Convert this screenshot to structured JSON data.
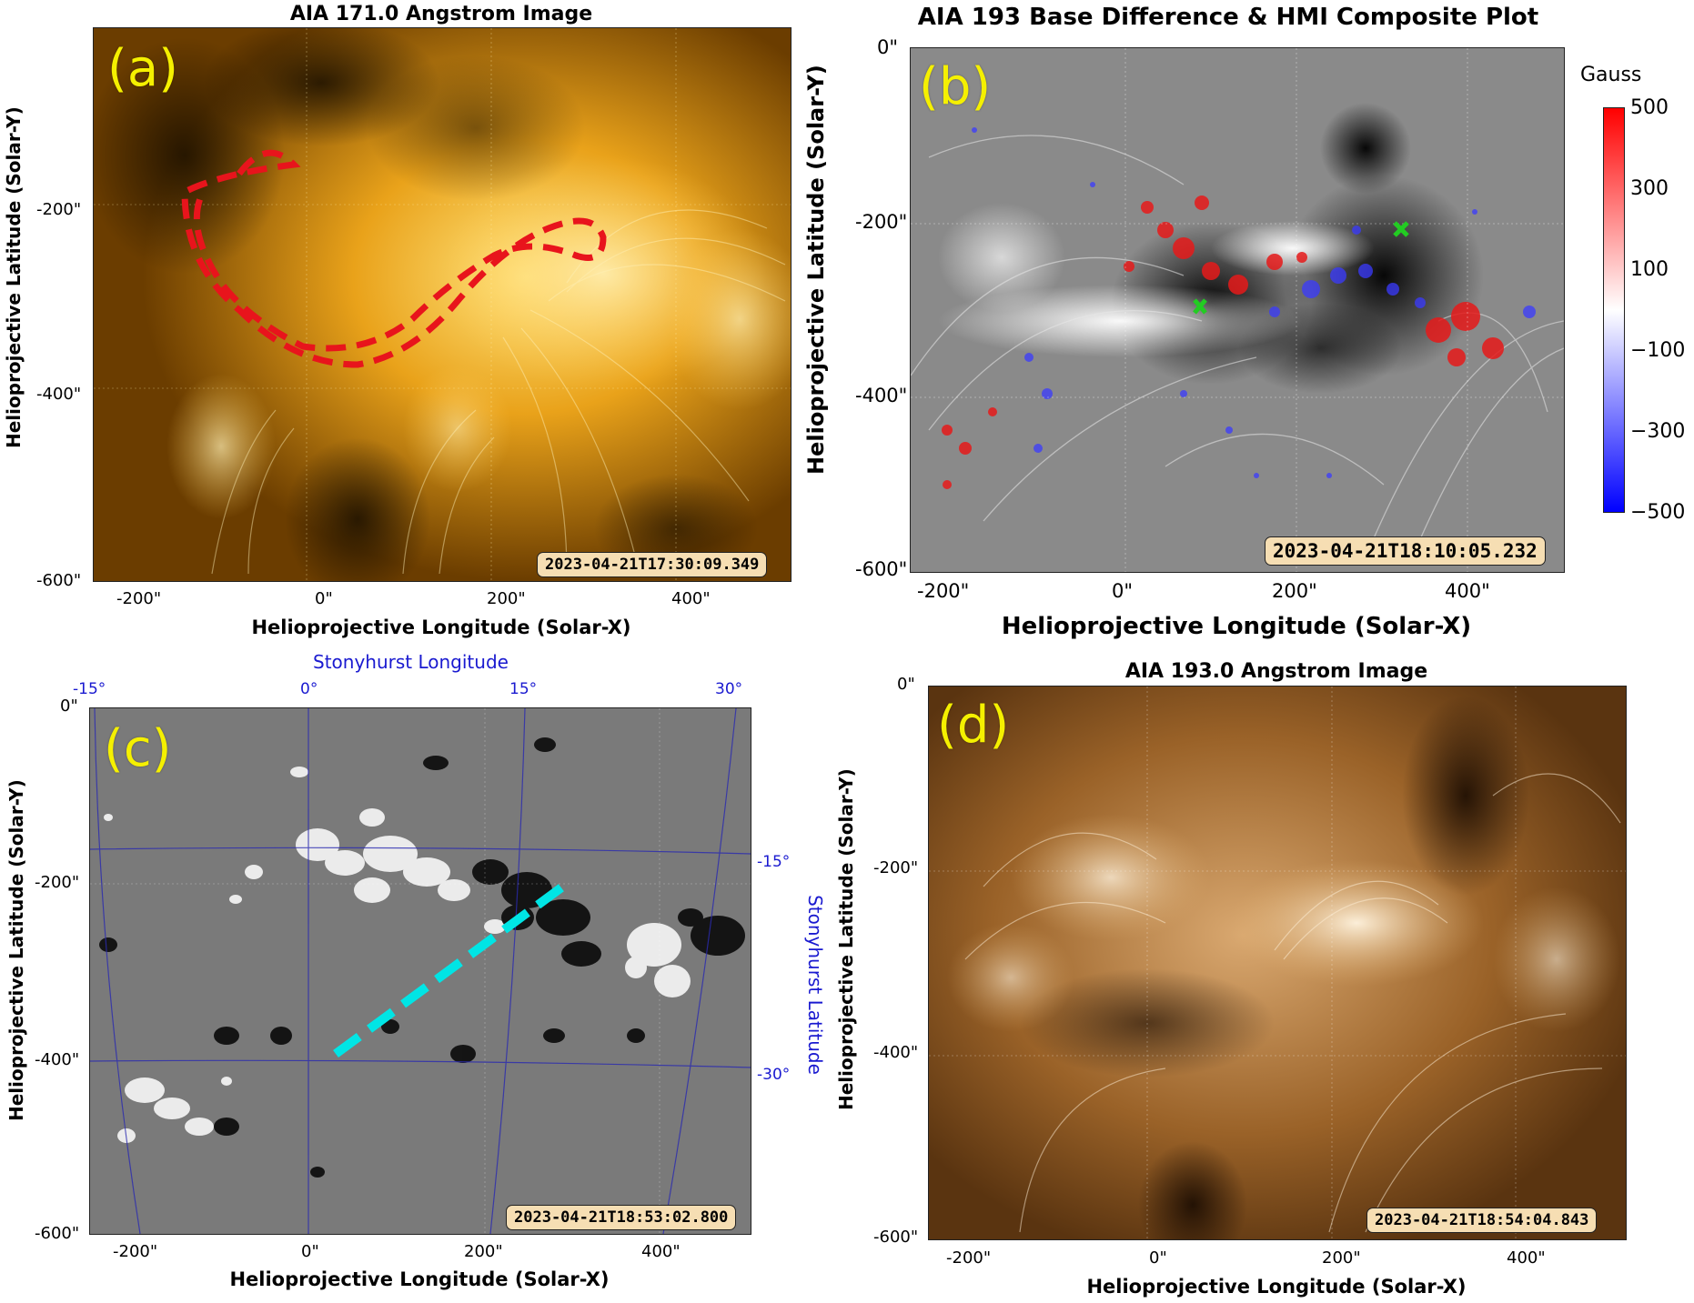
{
  "panels": {
    "a": {
      "title": "AIA 171.0 Angstrom Image",
      "label": "(a)",
      "timestamp": "2023-04-21T17:30:09.349",
      "xlabel": "Helioprojective Longitude (Solar-X)",
      "ylabel": "Helioprojective Latitude (Solar-Y)",
      "xticks": [
        "-200\"",
        "0\"",
        "200\"",
        "400\""
      ],
      "yticks": [
        "-200\"",
        "-400\"",
        "-600\""
      ],
      "overlay_color": "#e8141c"
    },
    "b": {
      "title": "AIA 193 Base Difference & HMI Composite Plot",
      "label": "(b)",
      "timestamp": "2023-04-21T18:10:05.232",
      "xlabel": "Helioprojective Longitude (Solar-X)",
      "ylabel": "Helioprojective Latitude (Solar-Y)",
      "xticks": [
        "-200\"",
        "0\"",
        "200\"",
        "400\""
      ],
      "yticks": [
        "0\"",
        "-200\"",
        "-400\"",
        "-600\""
      ],
      "colorbar": {
        "title": "Gauss",
        "ticks": [
          "500",
          "300",
          "100",
          "−100",
          "−300",
          "−500"
        ],
        "colors": [
          "#0000ff",
          "#ffffff",
          "#ff0000"
        ]
      },
      "marker_color": "#22cc22"
    },
    "c": {
      "label": "(c)",
      "timestamp": "2023-04-21T18:53:02.800",
      "xlabel": "Helioprojective Longitude (Solar-X)",
      "ylabel": "Helioprojective Latitude (Solar-Y)",
      "top_axis_label": "Stonyhurst Longitude",
      "right_axis_label": "Stonyhurst Latitude",
      "xticks": [
        "-200\"",
        "0\"",
        "200\"",
        "400\""
      ],
      "yticks": [
        "0\"",
        "-200\"",
        "-400\"",
        "-600\""
      ],
      "top_ticks": [
        "-15°",
        "0°",
        "15°",
        "30°"
      ],
      "right_ticks": [
        "-15°",
        "-30°"
      ],
      "overlay_color": "#00e5e5"
    },
    "d": {
      "title": "AIA 193.0 Angstrom Image",
      "label": "(d)",
      "timestamp": "2023-04-21T18:54:04.843",
      "xlabel": "Helioprojective Longitude (Solar-X)",
      "ylabel": "Helioprojective Latitude (Solar-Y)",
      "xticks": [
        "-200\"",
        "0\"",
        "200\"",
        "400\""
      ],
      "yticks": [
        "0\"",
        "-200\"",
        "-400\"",
        "-600\""
      ]
    }
  }
}
